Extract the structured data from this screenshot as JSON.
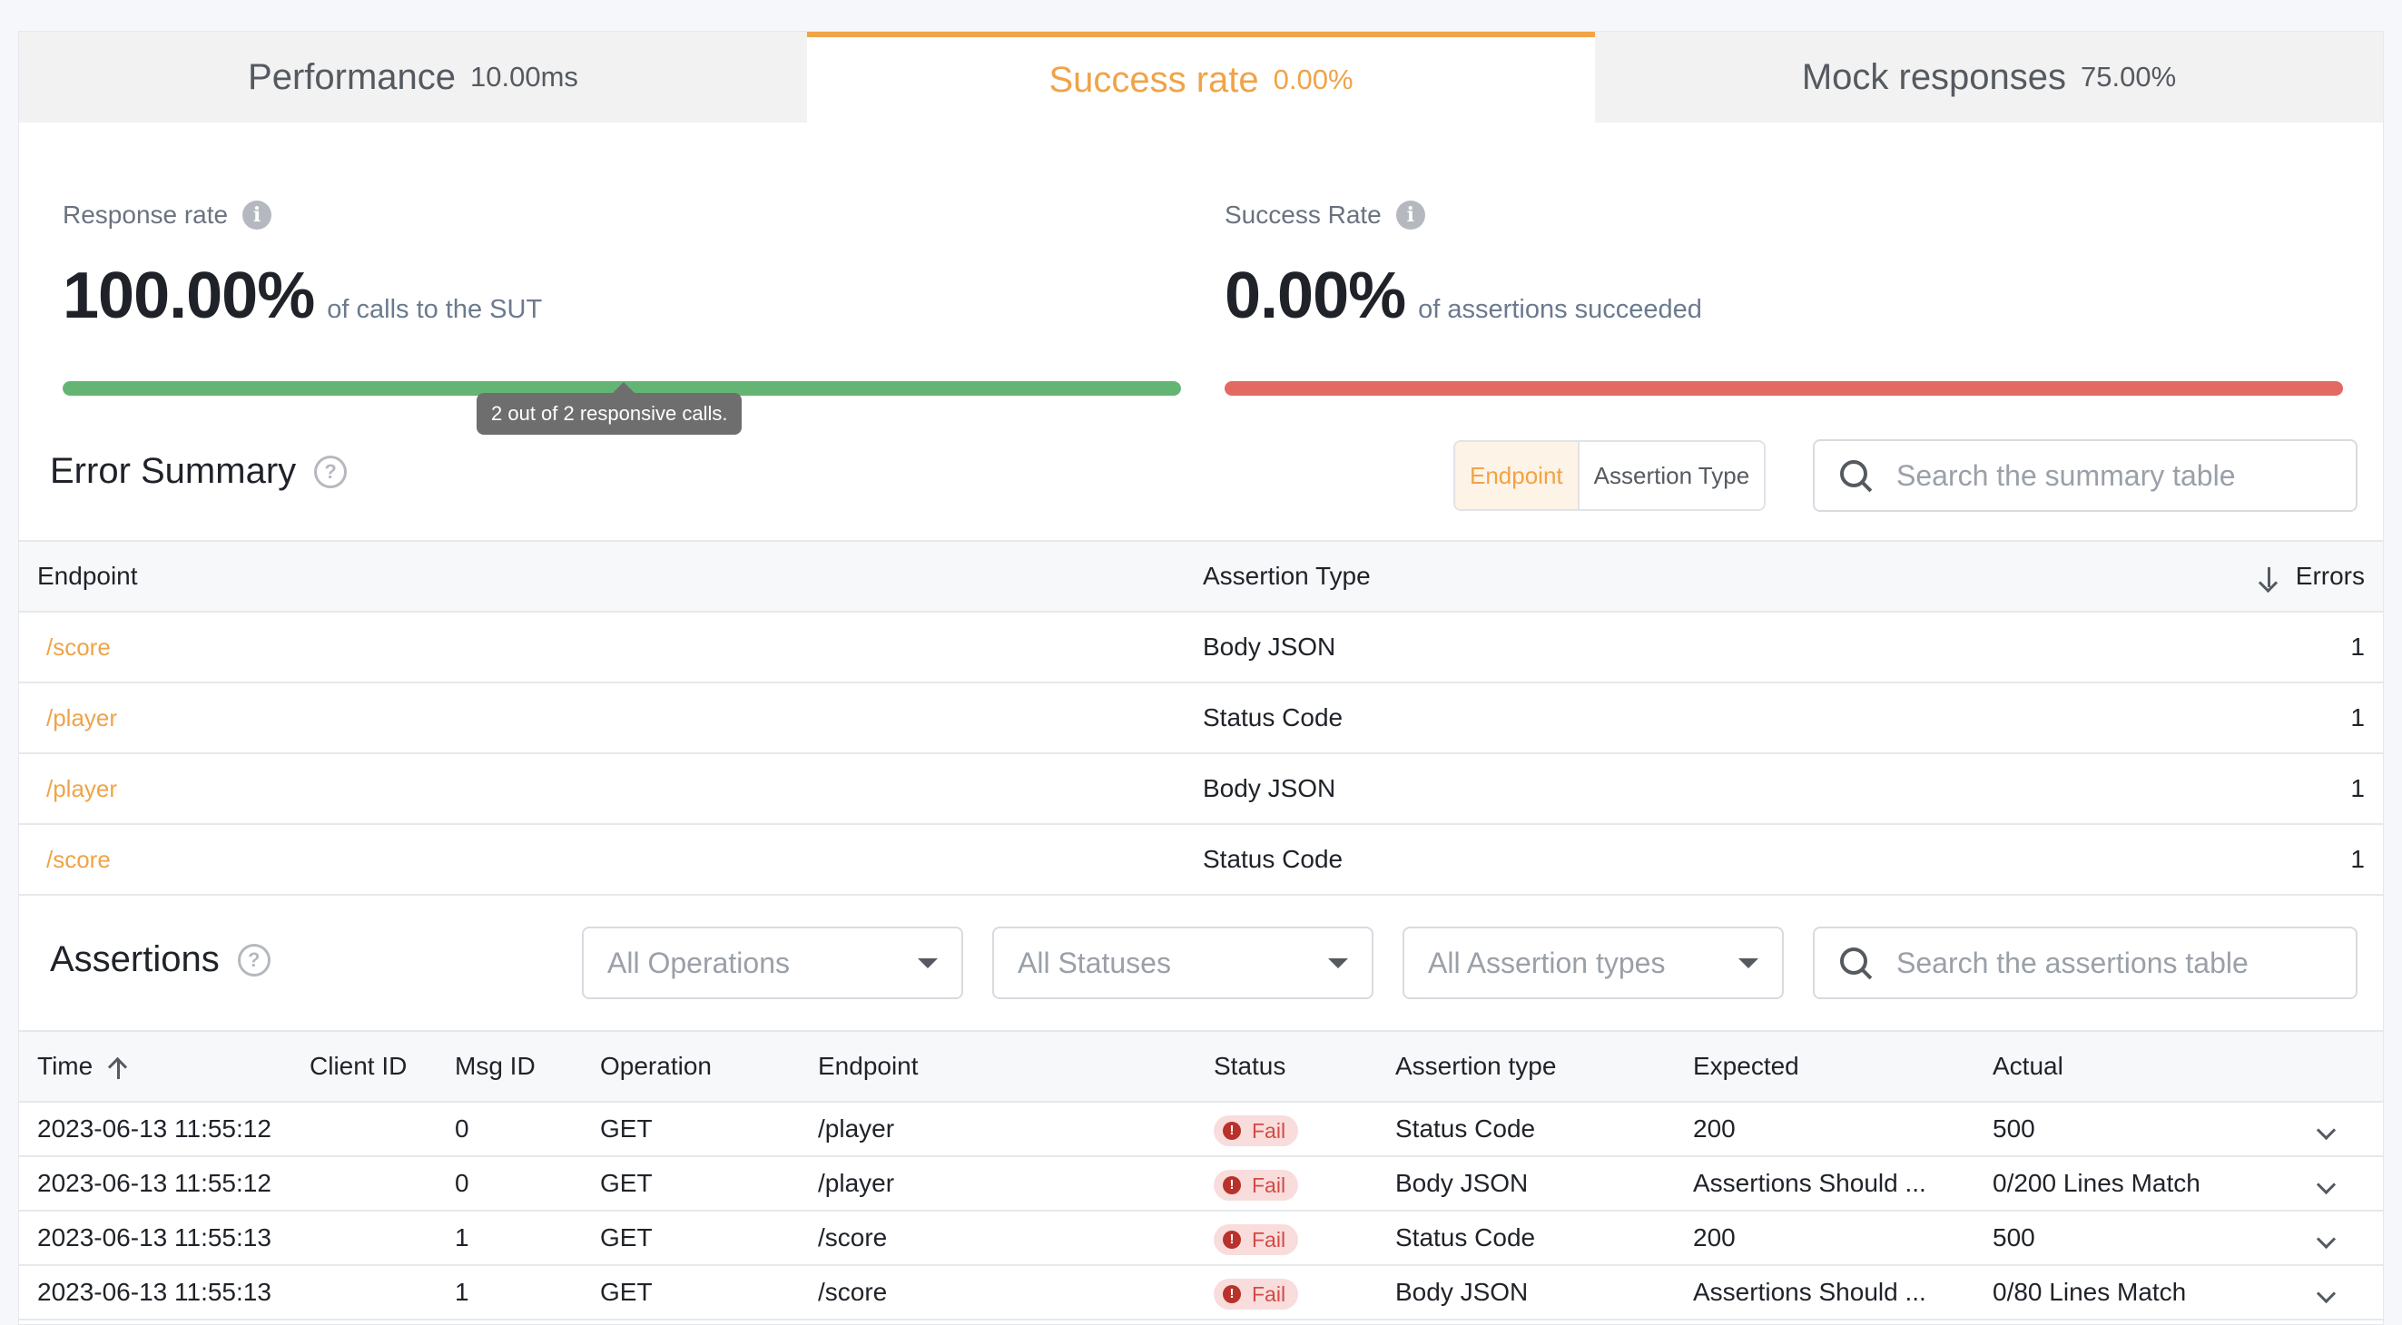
{
  "tabs": [
    {
      "label": "Performance",
      "value": "10.00ms"
    },
    {
      "label": "Success rate",
      "value": "0.00%"
    },
    {
      "label": "Mock responses",
      "value": "75.00%"
    }
  ],
  "response_rate": {
    "label": "Response rate",
    "value": "100.00%",
    "sub": "of calls to the SUT",
    "progress": 1.0,
    "color": "#64b574",
    "tooltip": "2 out of 2 responsive calls."
  },
  "success_rate": {
    "label": "Success Rate",
    "value": "0.00%",
    "sub": "of assertions succeeded",
    "progress": 0.0,
    "color": "#e26a63"
  },
  "error_summary": {
    "title": "Error Summary",
    "toggle": [
      "Endpoint",
      "Assertion Type"
    ],
    "search_placeholder": "Search the summary table",
    "columns": [
      "Endpoint",
      "Assertion Type",
      "Errors"
    ],
    "rows": [
      {
        "endpoint": "/score",
        "type": "Body JSON",
        "errors": "1"
      },
      {
        "endpoint": "/player",
        "type": "Status Code",
        "errors": "1"
      },
      {
        "endpoint": "/player",
        "type": "Body JSON",
        "errors": "1"
      },
      {
        "endpoint": "/score",
        "type": "Status Code",
        "errors": "1"
      }
    ]
  },
  "assertions": {
    "title": "Assertions",
    "filters": [
      "All Operations",
      "All Statuses",
      "All Assertion types"
    ],
    "search_placeholder": "Search the assertions table",
    "columns": [
      "Time",
      "Client ID",
      "Msg ID",
      "Operation",
      "Endpoint",
      "Status",
      "Assertion type",
      "Expected",
      "Actual"
    ],
    "rows": [
      {
        "time": "2023-06-13 11:55:12",
        "client": "",
        "msg": "0",
        "op": "GET",
        "endpoint": "/player",
        "status": "Fail",
        "type": "Status Code",
        "expected": "200",
        "actual": "500"
      },
      {
        "time": "2023-06-13 11:55:12",
        "client": "",
        "msg": "0",
        "op": "GET",
        "endpoint": "/player",
        "status": "Fail",
        "type": "Body JSON",
        "expected": "Assertions Should ...",
        "actual": "0/200 Lines Match"
      },
      {
        "time": "2023-06-13 11:55:13",
        "client": "",
        "msg": "1",
        "op": "GET",
        "endpoint": "/score",
        "status": "Fail",
        "type": "Status Code",
        "expected": "200",
        "actual": "500"
      },
      {
        "time": "2023-06-13 11:55:13",
        "client": "",
        "msg": "1",
        "op": "GET",
        "endpoint": "/score",
        "status": "Fail",
        "type": "Body JSON",
        "expected": "Assertions Should ...",
        "actual": "0/80 Lines Match"
      }
    ]
  },
  "accent": "#f0a347"
}
